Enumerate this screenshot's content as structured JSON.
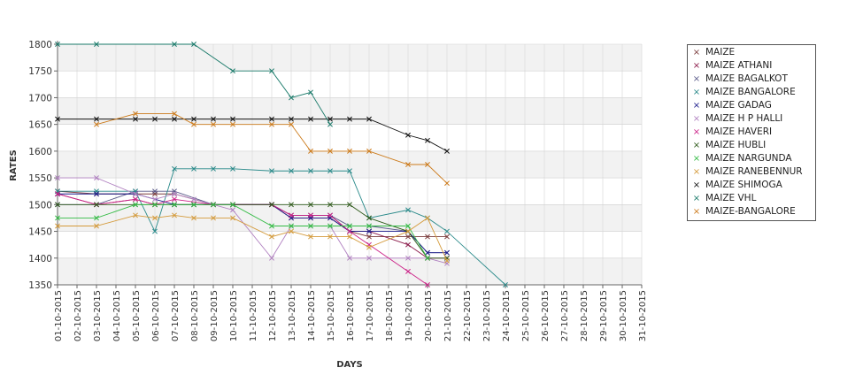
{
  "chart_data": {
    "type": "line",
    "xlabel": "DAYS",
    "ylabel": "RATES",
    "ylim": [
      1350,
      1800
    ],
    "yticks": [
      1350,
      1400,
      1450,
      1500,
      1550,
      1600,
      1650,
      1700,
      1750,
      1800
    ],
    "categories": [
      "01-10-2015",
      "02-10-2015",
      "03-10-2015",
      "04-10-2015",
      "05-10-2015",
      "06-10-2015",
      "07-10-2015",
      "08-10-2015",
      "09-10-2015",
      "10-10-2015",
      "11-10-2015",
      "12-10-2015",
      "13-10-2015",
      "14-10-2015",
      "15-10-2015",
      "16-10-2015",
      "17-10-2015",
      "18-10-2015",
      "19-10-2015",
      "20-10-2015",
      "21-10-2015",
      "22-10-2015",
      "23-10-2015",
      "24-10-2015",
      "25-10-2015",
      "26-10-2015",
      "27-10-2015",
      "28-10-2015",
      "29-10-2015",
      "30-10-2015",
      "31-10-2015"
    ],
    "grid": true,
    "legend_position": "right",
    "series": [
      {
        "name": "MAIZE",
        "color": "#7a3b3b",
        "values": [
          1525,
          null,
          1520,
          null,
          1520,
          1520,
          1520,
          null,
          1500,
          null,
          null,
          1500,
          1480,
          1480,
          1480,
          1450,
          1440,
          null,
          1440,
          1440,
          1440,
          null,
          null,
          null,
          null,
          null,
          null,
          null,
          null,
          null,
          null
        ]
      },
      {
        "name": "MAIZE ATHANI",
        "color": "#8b1a4a",
        "values": [
          1520,
          null,
          1500,
          null,
          1510,
          1500,
          1500,
          null,
          1500,
          1500,
          null,
          1500,
          1475,
          1475,
          1475,
          1450,
          1450,
          null,
          1425,
          1400,
          1400,
          null,
          null,
          null,
          null,
          null,
          null,
          null,
          null,
          null,
          null
        ]
      },
      {
        "name": "MAIZE BAGALKOT",
        "color": "#5a5a8a",
        "values": [
          1500,
          null,
          1500,
          null,
          1525,
          1525,
          1525,
          null,
          1500,
          1500,
          null,
          1500,
          1480,
          1480,
          1480,
          1460,
          1460,
          null,
          1450,
          1410,
          1410,
          null,
          null,
          null,
          null,
          null,
          null,
          null,
          null,
          null,
          null
        ]
      },
      {
        "name": "MAIZE BANGALORE",
        "color": "#2a8a8a",
        "values": [
          1525,
          null,
          1525,
          null,
          1525,
          1450,
          1567,
          1567,
          1567,
          1567,
          null,
          1563,
          1563,
          1563,
          1563,
          1563,
          1475,
          null,
          1490,
          1475,
          1450,
          null,
          null,
          1350,
          null,
          null,
          null,
          null,
          null,
          null,
          null
        ]
      },
      {
        "name": "MAIZE GADAG",
        "color": "#1a1a8a",
        "values": [
          1520,
          null,
          1520,
          null,
          1520,
          null,
          1500,
          1500,
          1500,
          null,
          null,
          1500,
          1475,
          1475,
          1475,
          1450,
          1450,
          null,
          1450,
          1410,
          1410,
          null,
          null,
          null,
          null,
          null,
          null,
          null,
          null,
          null,
          null
        ]
      },
      {
        "name": "MAIZE H P HALLI",
        "color": "#b080c0",
        "values": [
          1550,
          null,
          1550,
          null,
          1520,
          1510,
          1520,
          1510,
          1500,
          1490,
          null,
          1400,
          1460,
          1460,
          1460,
          1400,
          1400,
          null,
          1400,
          1400,
          1390,
          null,
          null,
          null,
          null,
          null,
          null,
          null,
          null,
          null,
          null
        ]
      },
      {
        "name": "MAIZE HAVERI",
        "color": "#cc2288",
        "values": [
          1520,
          null,
          1500,
          null,
          1510,
          1500,
          1510,
          null,
          1500,
          1500,
          null,
          1500,
          1480,
          1480,
          1480,
          1450,
          1425,
          null,
          1375,
          1350,
          null,
          null,
          null,
          null,
          null,
          null,
          null,
          null,
          null,
          null,
          null
        ]
      },
      {
        "name": "MAIZE HUBLI",
        "color": "#2e5a1a",
        "values": [
          1500,
          null,
          1500,
          null,
          1500,
          1500,
          1500,
          1500,
          1500,
          1500,
          null,
          1500,
          1500,
          1500,
          1500,
          1500,
          1475,
          null,
          1450,
          1400,
          1400,
          null,
          null,
          null,
          null,
          null,
          null,
          null,
          null,
          null,
          null
        ]
      },
      {
        "name": "MAIZE NARGUNDA",
        "color": "#33bb44",
        "values": [
          1475,
          null,
          1475,
          null,
          1500,
          1500,
          1500,
          1500,
          1500,
          1500,
          null,
          1460,
          1460,
          1460,
          1460,
          1460,
          1460,
          null,
          1460,
          1400,
          null,
          null,
          null,
          null,
          null,
          null,
          null,
          null,
          null,
          null,
          null
        ]
      },
      {
        "name": "MAIZE RANEBENNUR",
        "color": "#d49a3a",
        "values": [
          1460,
          null,
          1460,
          null,
          1480,
          1475,
          1480,
          1475,
          1475,
          1475,
          null,
          1440,
          1450,
          1440,
          1440,
          1440,
          1420,
          null,
          1450,
          1475,
          1395,
          null,
          null,
          null,
          null,
          null,
          null,
          null,
          null,
          null,
          null
        ]
      },
      {
        "name": "MAIZE SHIMOGA",
        "color": "#111111",
        "values": [
          1660,
          null,
          1660,
          null,
          1660,
          1660,
          1660,
          1660,
          1660,
          1660,
          null,
          1660,
          1660,
          1660,
          1660,
          1660,
          1660,
          null,
          1630,
          1620,
          1600,
          null,
          null,
          null,
          null,
          null,
          null,
          null,
          null,
          null,
          null
        ]
      },
      {
        "name": "MAIZE VHL",
        "color": "#1a7a6a",
        "values": [
          1800,
          null,
          1800,
          null,
          null,
          null,
          1800,
          1800,
          null,
          1750,
          null,
          1750,
          1700,
          1710,
          1650,
          null,
          null,
          null,
          null,
          null,
          null,
          null,
          null,
          null,
          null,
          null,
          null,
          null,
          null,
          null,
          null
        ]
      },
      {
        "name": "MAIZE-BANGALORE",
        "color": "#cc7a1a",
        "values": [
          null,
          null,
          1650,
          null,
          1670,
          null,
          1670,
          1650,
          1650,
          1650,
          null,
          1650,
          1650,
          1600,
          1600,
          1600,
          1600,
          null,
          1575,
          1575,
          1540,
          null,
          null,
          null,
          null,
          null,
          null,
          null,
          null,
          null,
          null
        ]
      }
    ]
  }
}
